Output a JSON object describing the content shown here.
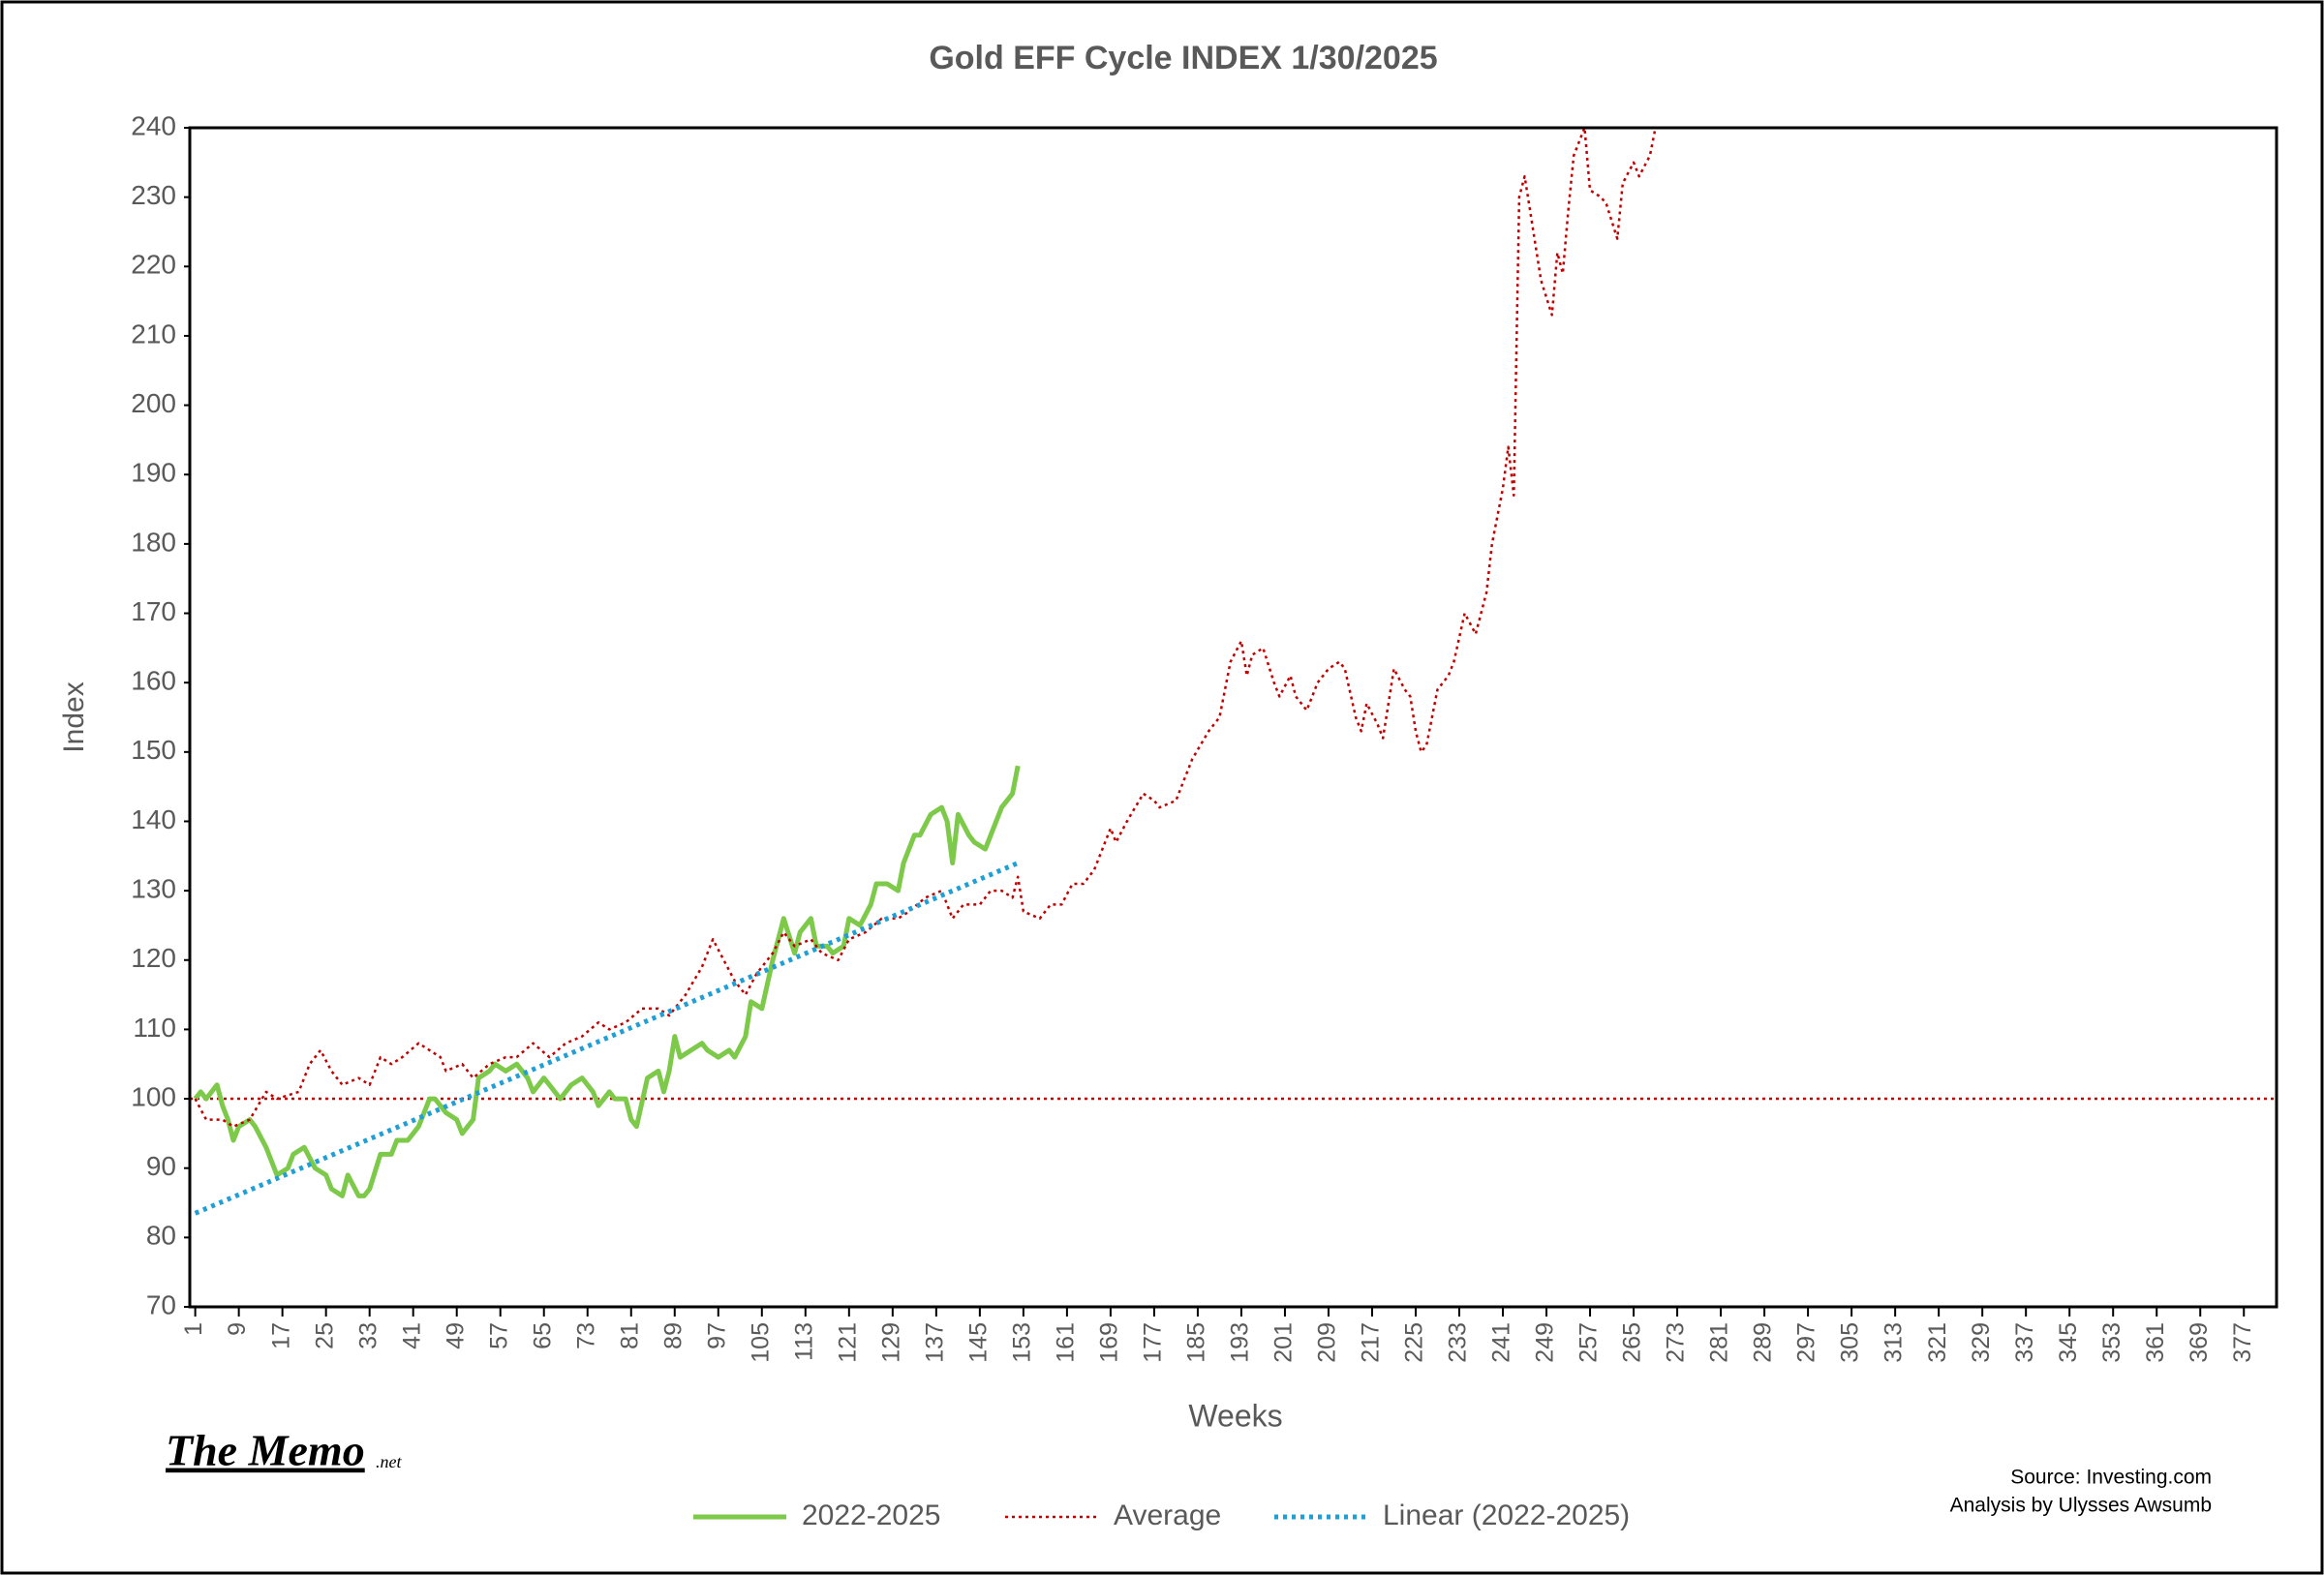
{
  "chart_data": {
    "type": "line",
    "title": "Gold EFF Cycle  INDEX 1/30/2025",
    "x_label": "Weeks",
    "y_label": "Index",
    "xlim": [
      0,
      383
    ],
    "ylim": [
      70,
      240
    ],
    "xticks": [
      1,
      9,
      17,
      25,
      33,
      41,
      49,
      57,
      65,
      73,
      81,
      89,
      97,
      105,
      113,
      121,
      129,
      137,
      145,
      153,
      161,
      169,
      177,
      185,
      193,
      201,
      209,
      217,
      225,
      233,
      241,
      249,
      257,
      265,
      273,
      281,
      289,
      297,
      305,
      313,
      321,
      329,
      337,
      345,
      353,
      361,
      369,
      377
    ],
    "yticks": [
      70,
      80,
      90,
      100,
      110,
      120,
      130,
      140,
      150,
      160,
      170,
      180,
      190,
      200,
      210,
      220,
      230,
      240
    ],
    "grid": false,
    "reference_line": {
      "value": 100,
      "color": "#c00000"
    },
    "series": [
      {
        "name": "2022-2025",
        "color": "#7dc94a",
        "style": "solid",
        "x": [
          1,
          2,
          3,
          5,
          6,
          7,
          8,
          9,
          11,
          12,
          14,
          16,
          18,
          19,
          21,
          23,
          25,
          26,
          28,
          29,
          31,
          32,
          33,
          35,
          37,
          38,
          40,
          42,
          44,
          45,
          47,
          49,
          50,
          52,
          53,
          55,
          56,
          58,
          60,
          62,
          63,
          65,
          66,
          68,
          70,
          72,
          74,
          75,
          77,
          78,
          80,
          81,
          82,
          84,
          86,
          87,
          88,
          89,
          90,
          92,
          94,
          95,
          97,
          99,
          100,
          102,
          103,
          105,
          107,
          108,
          109,
          111,
          112,
          114,
          115,
          117,
          118,
          120,
          121,
          123,
          125,
          126,
          128,
          130,
          131,
          133,
          134,
          136,
          138,
          139,
          140,
          141,
          143,
          144,
          146,
          147,
          149,
          151,
          152
        ],
        "values": [
          100,
          101,
          100,
          102,
          99,
          97,
          94,
          96,
          97,
          96,
          93,
          89,
          90,
          92,
          93,
          90,
          89,
          87,
          86,
          89,
          86,
          86,
          87,
          92,
          92,
          94,
          94,
          96,
          100,
          100,
          98,
          97,
          95,
          97,
          103,
          104,
          105,
          104,
          105,
          103,
          101,
          103,
          102,
          100,
          102,
          103,
          101,
          99,
          101,
          100,
          100,
          97,
          96,
          103,
          104,
          101,
          104,
          109,
          106,
          107,
          108,
          107,
          106,
          107,
          106,
          109,
          114,
          113,
          120,
          123,
          126,
          121,
          124,
          126,
          122,
          122,
          121,
          122,
          126,
          125,
          128,
          131,
          131,
          130,
          134,
          138,
          138,
          141,
          142,
          140,
          134,
          141,
          138,
          137,
          136,
          138,
          142,
          144,
          148
        ]
      },
      {
        "name": "Average",
        "color": "#c00000",
        "style": "dotted",
        "x": [
          1,
          3,
          6,
          8,
          11,
          14,
          16,
          20,
          22,
          24,
          26,
          28,
          31,
          33,
          35,
          37,
          39,
          42,
          44,
          46,
          47,
          50,
          52,
          55,
          58,
          60,
          63,
          66,
          69,
          72,
          75,
          77,
          80,
          83,
          86,
          88,
          91,
          94,
          96,
          98,
          100,
          102,
          104,
          107,
          109,
          111,
          114,
          116,
          119,
          121,
          124,
          127,
          130,
          132,
          135,
          138,
          140,
          142,
          145,
          147,
          149,
          151,
          152,
          153,
          156,
          158,
          160,
          162,
          164,
          166,
          169,
          170,
          172,
          175,
          177,
          178,
          181,
          184,
          187,
          189,
          191,
          193,
          194,
          195,
          197,
          199,
          200,
          202,
          203,
          205,
          207,
          209,
          211,
          212,
          214,
          215,
          216,
          218,
          219,
          221,
          223,
          224,
          225,
          226,
          227,
          229,
          231,
          232,
          234,
          236,
          238,
          239,
          241,
          242,
          243,
          244,
          245,
          246,
          248,
          250,
          251,
          252,
          253,
          254,
          256,
          257,
          259,
          260,
          262,
          263,
          265,
          266,
          268,
          269
        ],
        "values": [
          100,
          97,
          97,
          96,
          97,
          101,
          100,
          101,
          105,
          107,
          104,
          102,
          103,
          102,
          106,
          105,
          106,
          108,
          107,
          106,
          104,
          105,
          103,
          105,
          106,
          106,
          108,
          106,
          108,
          109,
          111,
          110,
          111,
          113,
          113,
          112,
          115,
          119,
          123,
          120,
          117,
          115,
          118,
          121,
          124,
          122,
          123,
          121,
          120,
          123,
          124,
          126,
          126,
          127,
          129,
          130,
          126,
          128,
          128,
          130,
          130,
          129,
          132,
          127,
          126,
          128,
          128,
          131,
          131,
          133,
          139,
          137,
          140,
          144,
          143,
          142,
          143,
          149,
          153,
          155,
          163,
          166,
          161,
          164,
          165,
          160,
          158,
          161,
          158,
          156,
          160,
          162,
          163,
          162,
          155,
          153,
          157,
          154,
          152,
          162,
          159,
          158,
          153,
          150,
          151,
          159,
          161,
          163,
          170,
          167,
          173,
          180,
          188,
          194,
          187,
          230,
          233,
          228,
          218,
          213,
          222,
          219,
          228,
          236,
          240,
          231,
          230,
          229,
          224,
          232,
          235,
          233,
          236,
          240
        ]
      },
      {
        "name": "Linear (2022-2025)",
        "color": "#1f9fd6",
        "style": "dotted-thick",
        "x": [
          1,
          152
        ],
        "values": [
          83.5,
          134
        ]
      }
    ],
    "logo": "The Memo",
    "logo_suffix": ".net",
    "source": "Source: Investing.com",
    "credit": "Analysis by Ulysses Awsumb"
  }
}
